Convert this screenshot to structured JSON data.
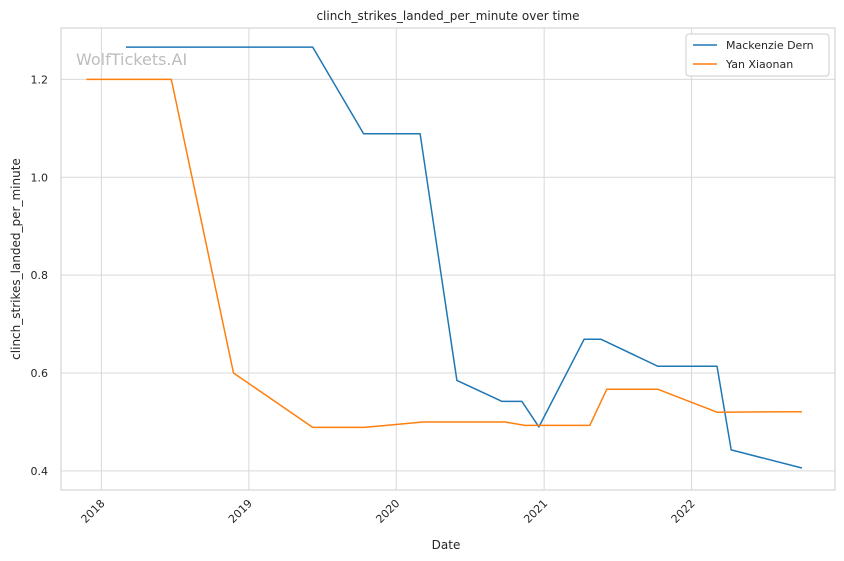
{
  "watermark": "WolfTickets.AI",
  "chart_data": {
    "type": "line",
    "title": "clinch_strikes_landed_per_minute over time",
    "xlabel": "Date",
    "ylabel": "clinch_strikes_landed_per_minute",
    "xlim": [
      "2017-09-23",
      "2022-12-22"
    ],
    "ylim": [
      0.361,
      1.305
    ],
    "x_ticks": [
      "2018",
      "2019",
      "2020",
      "2021",
      "2022"
    ],
    "y_ticks": [
      "0.4",
      "0.6",
      "0.8",
      "1.0",
      "1.2"
    ],
    "grid": true,
    "legend_position": "top-right",
    "series": [
      {
        "name": "Mackenzie Dern",
        "color": "#1f77b4",
        "points": [
          {
            "x": "2018-03-03",
            "y": 1.266
          },
          {
            "x": "2019-06-08",
            "y": 1.266
          },
          {
            "x": "2019-10-12",
            "y": 1.089
          },
          {
            "x": "2020-02-29",
            "y": 1.089
          },
          {
            "x": "2020-05-30",
            "y": 0.585
          },
          {
            "x": "2020-09-19",
            "y": 0.542
          },
          {
            "x": "2020-11-07",
            "y": 0.542
          },
          {
            "x": "2020-12-19",
            "y": 0.49
          },
          {
            "x": "2021-04-10",
            "y": 0.669
          },
          {
            "x": "2021-05-22",
            "y": 0.669
          },
          {
            "x": "2021-10-09",
            "y": 0.614
          },
          {
            "x": "2022-03-05",
            "y": 0.614
          },
          {
            "x": "2022-04-09",
            "y": 0.443
          },
          {
            "x": "2022-10-01",
            "y": 0.406
          }
        ]
      },
      {
        "name": "Yan Xiaonan",
        "color": "#ff7f0e",
        "points": [
          {
            "x": "2017-11-25",
            "y": 1.2
          },
          {
            "x": "2018-06-23",
            "y": 1.2
          },
          {
            "x": "2018-11-24",
            "y": 0.6
          },
          {
            "x": "2019-06-08",
            "y": 0.489
          },
          {
            "x": "2019-10-12",
            "y": 0.489
          },
          {
            "x": "2020-03-07",
            "y": 0.5
          },
          {
            "x": "2020-09-26",
            "y": 0.5
          },
          {
            "x": "2020-11-14",
            "y": 0.493
          },
          {
            "x": "2021-04-24",
            "y": 0.493
          },
          {
            "x": "2021-06-05",
            "y": 0.567
          },
          {
            "x": "2021-10-09",
            "y": 0.567
          },
          {
            "x": "2022-03-05",
            "y": 0.52
          },
          {
            "x": "2022-10-01",
            "y": 0.521
          }
        ]
      }
    ]
  }
}
